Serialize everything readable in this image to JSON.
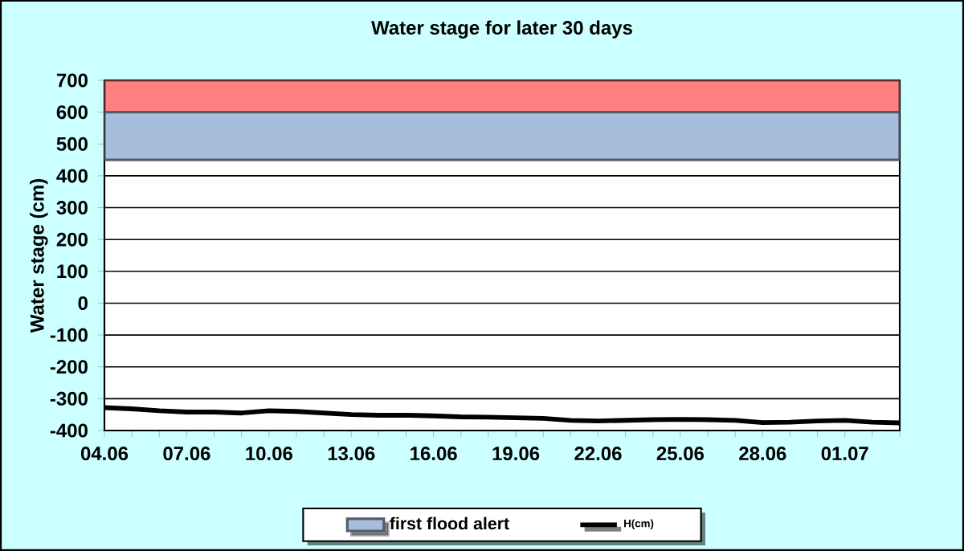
{
  "chart_data": {
    "type": "line",
    "title": "Water stage for later 30 days",
    "ylabel": "Water stage (cm)",
    "categories": [
      "04.06",
      null,
      null,
      "07.06",
      null,
      null,
      "10.06",
      null,
      null,
      "13.06",
      null,
      null,
      "16.06",
      null,
      null,
      "19.06",
      null,
      null,
      "22.06",
      null,
      null,
      "25.06",
      null,
      null,
      "28.06",
      null,
      null,
      "01.07",
      null,
      null
    ],
    "series": [
      {
        "name": "H(cm)",
        "color": "#000000",
        "values": [
          -328,
          -332,
          -338,
          -342,
          -342,
          -345,
          -338,
          -340,
          -345,
          -350,
          -352,
          -352,
          -354,
          -357,
          -358,
          -360,
          -362,
          -368,
          -370,
          -368,
          -366,
          -365,
          -366,
          -368,
          -375,
          -374,
          -370,
          -368,
          -374,
          -376
        ]
      }
    ],
    "ylim": [
      -400,
      700
    ],
    "yticks": [
      -400,
      -300,
      -200,
      -100,
      0,
      100,
      200,
      300,
      400,
      500,
      600,
      700
    ],
    "bands": [
      {
        "axis": "y",
        "from": 600,
        "to": 700,
        "color": "#ff8080"
      },
      {
        "axis": "y",
        "from": 450,
        "to": 600,
        "label": "first flood alert",
        "color": "#a6bddb"
      }
    ],
    "grid": "y",
    "legend": "bottom",
    "marker": "none",
    "line_style": "solid"
  }
}
